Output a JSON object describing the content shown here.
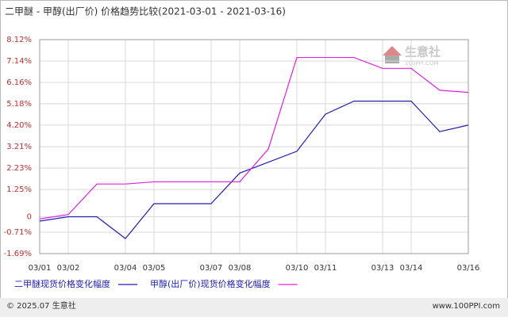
{
  "chart_data": {
    "type": "line",
    "title": "二甲醚 - 甲醇(出厂价) 价格趋势比较(2021-03-01 - 2021-03-16)",
    "categories": [
      "03/01",
      "03/02",
      null,
      "03/04",
      "03/05",
      null,
      "03/07",
      "03/08",
      null,
      "03/10",
      "03/11",
      null,
      "03/13",
      "03/14",
      null,
      "03/16"
    ],
    "series": [
      {
        "name": "二甲醚现货价格变化幅度",
        "color": "#2020b0",
        "values": [
          -0.2,
          0,
          0,
          -1.0,
          0.6,
          0.6,
          0.6,
          2.0,
          2.5,
          3.0,
          4.7,
          5.3,
          5.3,
          5.3,
          3.9,
          4.2
        ]
      },
      {
        "name": "甲醇(出厂价)现货价格变化幅度",
        "color": "#e020e0",
        "values": [
          -0.1,
          0.1,
          1.5,
          1.5,
          1.6,
          1.6,
          1.6,
          1.6,
          3.1,
          7.3,
          7.3,
          7.3,
          6.8,
          6.8,
          5.8,
          5.7
        ]
      }
    ],
    "ylim": [
      -1.69,
      8.12
    ],
    "yticks": [
      {
        "value": -1.69,
        "label": "-1.69%"
      },
      {
        "value": -0.71,
        "label": "-0.71%"
      },
      0,
      {
        "value": 1.25,
        "label": "1.25%"
      },
      {
        "value": 2.23,
        "label": "2.23%"
      },
      {
        "value": 3.21,
        "label": "3.21%"
      },
      {
        "value": 4.2,
        "label": "4.20%"
      },
      {
        "value": 5.18,
        "label": "5.18%"
      },
      {
        "value": 6.16,
        "label": "6.16%"
      },
      {
        "value": 7.14,
        "label": "7.14%"
      },
      {
        "value": 8.12,
        "label": "8.12%"
      }
    ],
    "grid": true,
    "watermark": "生意社",
    "watermark_sub": "100PPI.COM",
    "footer_left": "© 2025.07 生意社",
    "footer_right": "www.100PPI.com"
  }
}
